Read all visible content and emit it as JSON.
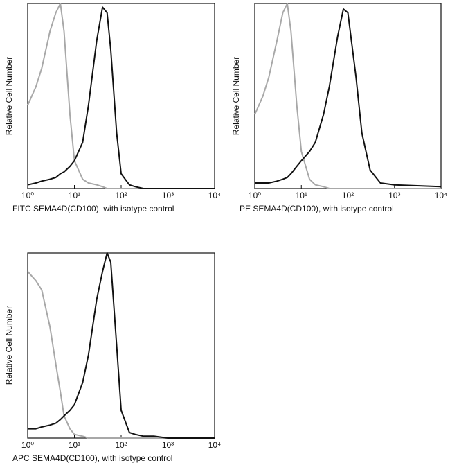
{
  "chart_data": [
    {
      "type": "line",
      "y_label": "Relative Cell Number",
      "x_label": "FITC  SEMA4D(CD100),  with isotype control",
      "log_x": true,
      "xlim": [
        1,
        10000
      ],
      "xticks": [
        {
          "value": 1,
          "label": "10⁰"
        },
        {
          "value": 10,
          "label": "10¹"
        },
        {
          "value": 100,
          "label": "10²"
        },
        {
          "value": 1000,
          "label": "10³"
        },
        {
          "value": 10000,
          "label": "10⁴"
        }
      ],
      "ylim": [
        0,
        100
      ],
      "x": [
        1,
        1.5,
        2,
        3,
        4,
        5,
        6,
        8,
        10,
        15,
        20,
        30,
        40,
        50,
        60,
        80,
        100,
        150,
        200,
        300,
        500,
        1000,
        10000
      ],
      "series": [
        {
          "color": "#a8a8a8",
          "values": [
            45,
            55,
            65,
            85,
            95,
            100,
            85,
            40,
            15,
            5,
            3,
            2,
            1,
            0,
            0,
            0,
            0,
            0,
            0,
            0,
            0,
            0,
            0
          ]
        },
        {
          "color": "#111111",
          "values": [
            2,
            3,
            4,
            5,
            6,
            8,
            9,
            12,
            15,
            25,
            45,
            80,
            98,
            95,
            75,
            30,
            8,
            2,
            1,
            0,
            0,
            0,
            0
          ]
        }
      ]
    },
    {
      "type": "line",
      "y_label": "Relative Cell Number",
      "x_label": "PE SEMA4D(CD100), with isotype control",
      "log_x": true,
      "xlim": [
        1,
        10000
      ],
      "xticks": [
        {
          "value": 1,
          "label": "10⁰"
        },
        {
          "value": 10,
          "label": "10¹"
        },
        {
          "value": 100,
          "label": "10²"
        },
        {
          "value": 1000,
          "label": "10³"
        },
        {
          "value": 10000,
          "label": "10⁴"
        }
      ],
      "ylim": [
        0,
        100
      ],
      "x": [
        1,
        1.5,
        2,
        3,
        4,
        5,
        6,
        8,
        10,
        15,
        20,
        30,
        40,
        50,
        60,
        80,
        100,
        150,
        200,
        300,
        500,
        1000,
        10000
      ],
      "series": [
        {
          "color": "#a8a8a8",
          "values": [
            40,
            50,
            60,
            80,
            95,
            100,
            85,
            45,
            20,
            5,
            2,
            1,
            0,
            0,
            0,
            0,
            0,
            0,
            0,
            0,
            0,
            0,
            0
          ]
        },
        {
          "color": "#111111",
          "values": [
            3,
            3,
            3,
            4,
            5,
            6,
            8,
            12,
            15,
            20,
            25,
            40,
            55,
            70,
            82,
            97,
            95,
            60,
            30,
            10,
            3,
            2,
            1
          ]
        }
      ]
    },
    {
      "type": "line",
      "y_label": "Relative Cell Number",
      "x_label": "APC SEMA4D(CD100), with isotype control",
      "log_x": true,
      "xlim": [
        1,
        10000
      ],
      "xticks": [
        {
          "value": 1,
          "label": "10⁰"
        },
        {
          "value": 10,
          "label": "10¹"
        },
        {
          "value": 100,
          "label": "10²"
        },
        {
          "value": 1000,
          "label": "10³"
        },
        {
          "value": 10000,
          "label": "10⁴"
        }
      ],
      "ylim": [
        0,
        100
      ],
      "x": [
        1,
        1.5,
        2,
        3,
        4,
        5,
        6,
        8,
        10,
        15,
        20,
        30,
        40,
        50,
        60,
        80,
        100,
        150,
        200,
        300,
        500,
        1000,
        10000
      ],
      "series": [
        {
          "color": "#a8a8a8",
          "values": [
            90,
            85,
            80,
            60,
            40,
            25,
            12,
            5,
            2,
            1,
            0,
            0,
            0,
            0,
            0,
            0,
            0,
            0,
            0,
            0,
            0,
            0,
            0
          ]
        },
        {
          "color": "#111111",
          "values": [
            5,
            5,
            6,
            7,
            8,
            10,
            12,
            15,
            18,
            30,
            45,
            75,
            90,
            100,
            95,
            50,
            15,
            3,
            2,
            1,
            1,
            0,
            0
          ]
        }
      ]
    }
  ]
}
